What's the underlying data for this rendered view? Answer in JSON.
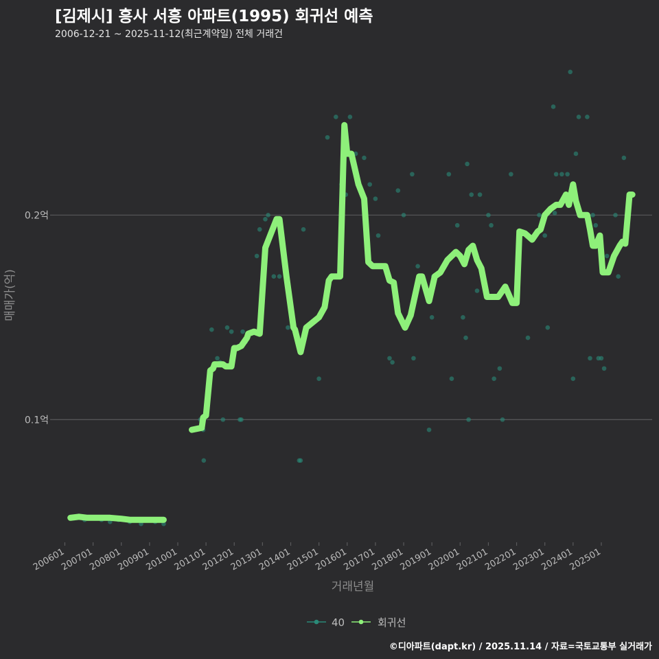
{
  "header": {
    "title": "[김제시] 흥사 서흥 아파트(1995) 회귀선 예측",
    "subtitle": "2006-12-21 ~ 2025-11-12(최근계약일) 전체 거래건"
  },
  "footer": {
    "credit": "©디아파트(dapt.kr) / 2025.11.14 / 자료=국토교통부 실거래가"
  },
  "colors": {
    "background": "#2b2b2d",
    "grid": "#5a5a5c",
    "points": "#2a8a78",
    "regression": "#8ef07a",
    "axis_text": "#bdbdbd",
    "title": "#ffffff"
  },
  "chart_data": {
    "type": "scatter",
    "title": "[김제시] 흥사 서흥 아파트(1995) 회귀선 예측",
    "subtitle": "2006-12-21 ~ 2025-11-12(최근계약일) 전체 거래건",
    "xlabel": "거래년월",
    "ylabel": "매매가(억)",
    "xlim": [
      2005.6,
      2026.8
    ],
    "ylim": [
      0.04,
      0.28
    ],
    "grid": true,
    "legend_position": "bottom",
    "x_ticks": [
      {
        "value": 2006.0,
        "label": "200601"
      },
      {
        "value": 2007.0,
        "label": "200701"
      },
      {
        "value": 2008.0,
        "label": "200801"
      },
      {
        "value": 2009.0,
        "label": "200901"
      },
      {
        "value": 2010.0,
        "label": "201001"
      },
      {
        "value": 2011.0,
        "label": "201101"
      },
      {
        "value": 2012.0,
        "label": "201201"
      },
      {
        "value": 2013.0,
        "label": "201301"
      },
      {
        "value": 2014.0,
        "label": "201401"
      },
      {
        "value": 2015.0,
        "label": "201501"
      },
      {
        "value": 2016.0,
        "label": "201601"
      },
      {
        "value": 2017.0,
        "label": "201701"
      },
      {
        "value": 2018.0,
        "label": "201801"
      },
      {
        "value": 2019.0,
        "label": "201901"
      },
      {
        "value": 2020.0,
        "label": "202001"
      },
      {
        "value": 2021.0,
        "label": "202101"
      },
      {
        "value": 2022.0,
        "label": "202201"
      },
      {
        "value": 2023.0,
        "label": "202301"
      },
      {
        "value": 2024.0,
        "label": "202401"
      },
      {
        "value": 2025.0,
        "label": "202501"
      }
    ],
    "y_ticks": [
      {
        "value": 0.1,
        "label": "0.1억"
      },
      {
        "value": 0.2,
        "label": "0.2억"
      }
    ],
    "legend": [
      {
        "name": "40",
        "kind": "points"
      },
      {
        "name": "회귀선",
        "kind": "line"
      }
    ],
    "series": [
      {
        "name": "40",
        "kind": "points",
        "x": [
          2006.2,
          2006.4,
          2006.7,
          2007.3,
          2007.6,
          2007.9,
          2008.3,
          2008.7,
          2009.2,
          2009.5,
          2010.8,
          2010.9,
          2010.92,
          2011.2,
          2011.4,
          2011.5,
          2011.6,
          2011.75,
          2011.9,
          2012.2,
          2012.25,
          2012.3,
          2012.4,
          2012.8,
          2012.9,
          2013.1,
          2013.2,
          2013.4,
          2013.6,
          2013.9,
          2014.3,
          2014.35,
          2014.45,
          2014.6,
          2015.0,
          2015.3,
          2015.6,
          2015.8,
          2015.95,
          2016.1,
          2016.15,
          2016.3,
          2016.6,
          2016.8,
          2017.0,
          2017.1,
          2017.2,
          2017.5,
          2017.6,
          2017.8,
          2018.0,
          2018.3,
          2018.35,
          2018.5,
          2018.9,
          2019.0,
          2019.05,
          2019.6,
          2019.7,
          2019.9,
          2020.1,
          2020.2,
          2020.25,
          2020.3,
          2020.4,
          2020.6,
          2020.7,
          2021.0,
          2021.1,
          2021.2,
          2021.4,
          2021.5,
          2021.8,
          2022.4,
          2022.8,
          2023.0,
          2023.1,
          2023.3,
          2023.35,
          2023.4,
          2023.6,
          2023.8,
          2023.9,
          2024.0,
          2024.1,
          2024.2,
          2024.3,
          2024.5,
          2024.6,
          2024.7,
          2024.8,
          2024.9,
          2025.0,
          2025.1,
          2025.2,
          2025.5,
          2025.6,
          2025.8
        ],
        "values": [
          0.052,
          0.052,
          0.051,
          0.051,
          0.05,
          0.051,
          0.05,
          0.049,
          0.05,
          0.049,
          0.1,
          0.095,
          0.08,
          0.144,
          0.13,
          0.128,
          0.1,
          0.145,
          0.143,
          0.1,
          0.1,
          0.143,
          0.138,
          0.18,
          0.193,
          0.198,
          0.2,
          0.17,
          0.17,
          0.145,
          0.08,
          0.08,
          0.193,
          0.145,
          0.12,
          0.238,
          0.248,
          0.215,
          0.21,
          0.248,
          0.23,
          0.23,
          0.228,
          0.215,
          0.208,
          0.19,
          0.175,
          0.13,
          0.128,
          0.212,
          0.2,
          0.22,
          0.13,
          0.175,
          0.095,
          0.15,
          0.17,
          0.22,
          0.12,
          0.195,
          0.15,
          0.14,
          0.225,
          0.1,
          0.21,
          0.163,
          0.21,
          0.2,
          0.195,
          0.12,
          0.125,
          0.1,
          0.22,
          0.14,
          0.2,
          0.19,
          0.145,
          0.253,
          0.201,
          0.22,
          0.22,
          0.22,
          0.27,
          0.12,
          0.23,
          0.248,
          0.2,
          0.248,
          0.13,
          0.2,
          0.195,
          0.13,
          0.13,
          0.125,
          0.18,
          0.2,
          0.17,
          0.228
        ]
      },
      {
        "name": "회귀선",
        "kind": "line",
        "segments": [
          {
            "x": [
              2006.2,
              2006.5,
              2006.8,
              2007.2,
              2007.6,
              2008.0,
              2008.3,
              2008.7,
              2009.1,
              2009.5
            ],
            "values": [
              0.052,
              0.0525,
              0.052,
              0.052,
              0.052,
              0.0515,
              0.051,
              0.051,
              0.051,
              0.051
            ]
          },
          {
            "x": [
              2010.5,
              2010.85,
              2010.9,
              2011.0,
              2011.15,
              2011.25,
              2011.3,
              2011.6,
              2011.7,
              2011.9,
              2012.0,
              2012.1,
              2012.25,
              2012.45,
              2012.5,
              2012.7,
              2012.9,
              2013.1,
              2013.5,
              2013.6,
              2013.85,
              2014.1,
              2014.15,
              2014.35,
              2014.55,
              2015.0,
              2015.2,
              2015.35,
              2015.45,
              2015.5,
              2015.75,
              2015.9,
              2016.0,
              2016.1,
              2016.15,
              2016.4,
              2016.6,
              2016.75,
              2016.9,
              2017.1,
              2017.35,
              2017.5,
              2017.65,
              2017.8,
              2018.05,
              2018.25,
              2018.55,
              2018.65,
              2018.9,
              2019.1,
              2019.3,
              2019.55,
              2019.7,
              2019.85,
              2020.0,
              2020.15,
              2020.3,
              2020.45,
              2020.6,
              2020.75,
              2020.95,
              2021.15,
              2021.35,
              2021.6,
              2021.85,
              2022.0,
              2022.1,
              2022.3,
              2022.55,
              2022.75,
              2022.85,
              2023.0,
              2023.2,
              2023.4,
              2023.55,
              2023.75,
              2023.85,
              2024.0,
              2024.1,
              2024.25,
              2024.5,
              2024.6,
              2024.7,
              2024.8,
              2024.95,
              2025.05,
              2025.25,
              2025.45,
              2025.65,
              2025.75,
              2025.85,
              2026.0,
              2026.1
            ],
            "values": [
              0.095,
              0.096,
              0.101,
              0.102,
              0.124,
              0.125,
              0.127,
              0.127,
              0.126,
              0.126,
              0.135,
              0.135,
              0.136,
              0.14,
              0.142,
              0.143,
              0.142,
              0.184,
              0.198,
              0.198,
              0.17,
              0.145,
              0.144,
              0.133,
              0.145,
              0.15,
              0.155,
              0.168,
              0.17,
              0.17,
              0.17,
              0.244,
              0.23,
              0.23,
              0.23,
              0.215,
              0.208,
              0.177,
              0.175,
              0.175,
              0.175,
              0.168,
              0.167,
              0.152,
              0.145,
              0.151,
              0.17,
              0.17,
              0.158,
              0.17,
              0.172,
              0.178,
              0.18,
              0.182,
              0.18,
              0.176,
              0.183,
              0.185,
              0.178,
              0.174,
              0.16,
              0.16,
              0.16,
              0.165,
              0.157,
              0.157,
              0.192,
              0.191,
              0.188,
              0.192,
              0.193,
              0.2,
              0.203,
              0.205,
              0.205,
              0.21,
              0.205,
              0.215,
              0.207,
              0.2,
              0.2,
              0.193,
              0.185,
              0.185,
              0.19,
              0.172,
              0.172,
              0.18,
              0.185,
              0.187,
              0.186,
              0.21,
              0.21
            ]
          }
        ]
      }
    ]
  }
}
